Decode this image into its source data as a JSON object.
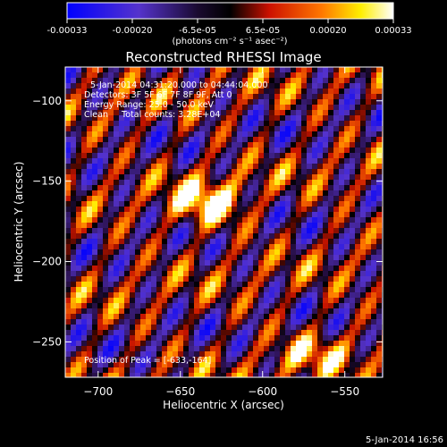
{
  "colorbar": {
    "tick_labels": [
      "-0.00033",
      "-0.00020",
      "-6.5e-05",
      "6.5e-05",
      "0.00020",
      "0.00033"
    ],
    "unit_label": "(photons cm⁻² s⁻¹ asec⁻²)"
  },
  "chart_data": {
    "type": "heatmap",
    "title": "Reconstructed RHESSI Image",
    "xlabel": "Heliocentric X (arcsec)",
    "ylabel": "Heliocentric Y (arcsec)",
    "xlim": [
      -720,
      -527
    ],
    "ylim": [
      -272,
      -79
    ],
    "x_ticks": [
      -700,
      -650,
      -600,
      -550
    ],
    "y_ticks": [
      -100,
      -150,
      -200,
      -250
    ],
    "value_range": [
      -0.00033,
      0.00033
    ],
    "peak_position": [
      -633,
      -164
    ],
    "colormap": [
      "#0000ff",
      "#6a3fa8",
      "#000000",
      "#ff2200",
      "#ffee00",
      "#ffffff"
    ],
    "annotations": [
      "5-Jan-2014 04:31:20.000 to 04:44:04.000",
      "Detectors: 3F 5F 6F 7F 8F 9F, Att 0",
      "Energy Range: 25.0 - 50.0 keV",
      "Clean     Total counts: 3.28E+04"
    ],
    "peak_label": "Position of Peak = [-633,-164]"
  },
  "footer": {
    "timestamp": "5-Jan-2014 16:56"
  }
}
